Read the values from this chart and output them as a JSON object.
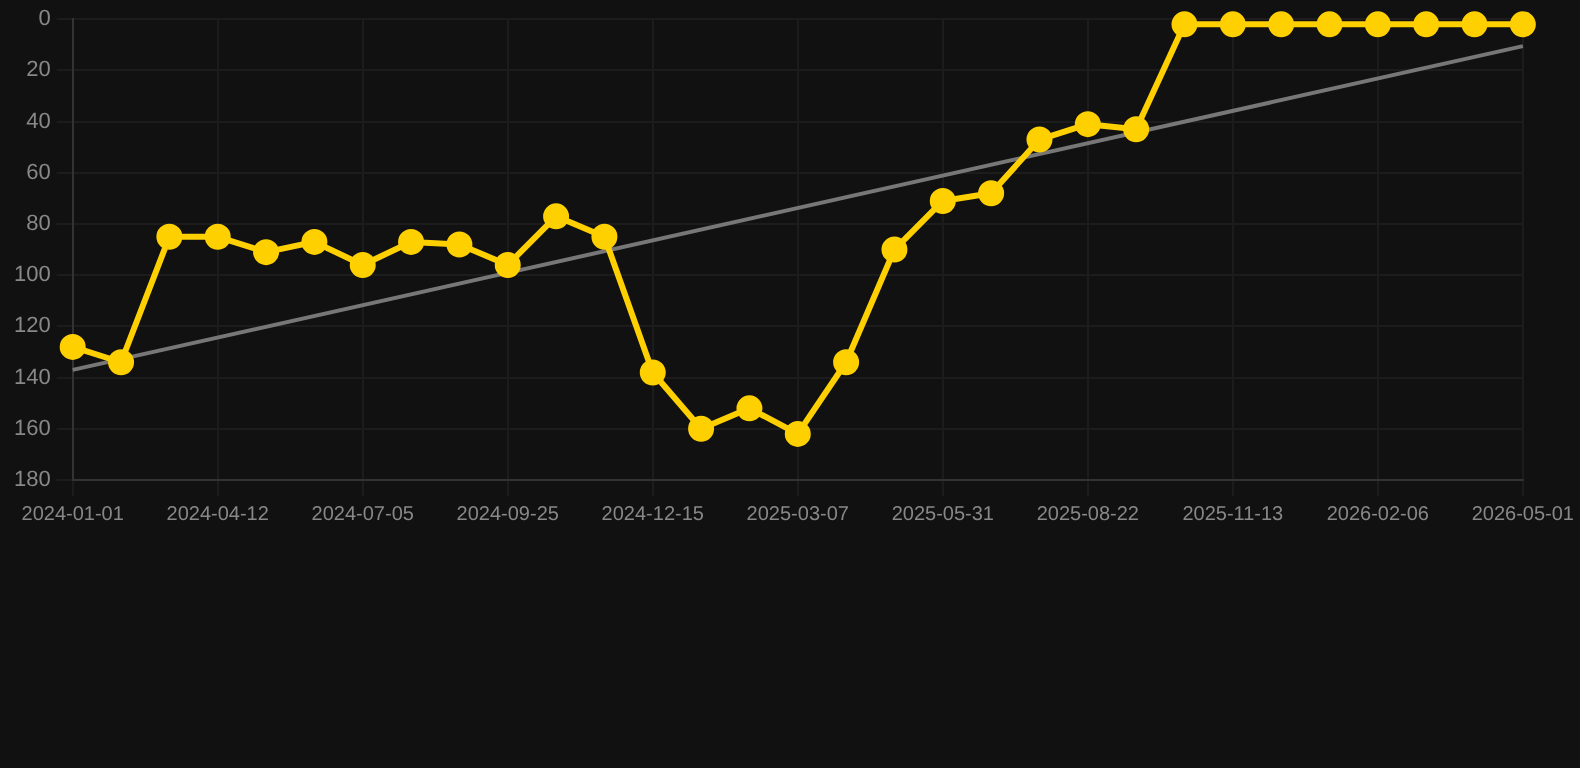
{
  "chart_data": {
    "type": "line",
    "categories": [
      "2024-01-01",
      null,
      null,
      "2024-04-12",
      null,
      null,
      "2024-07-05",
      null,
      null,
      "2024-09-25",
      null,
      null,
      "2024-12-15",
      null,
      null,
      "2025-03-07",
      null,
      null,
      "2025-05-31",
      null,
      null,
      "2025-08-22",
      null,
      null,
      "2025-11-13",
      null,
      null,
      "2026-02-06",
      null,
      null,
      "2026-05-01"
    ],
    "series": [
      {
        "color": "#ffd000",
        "marker": "circle",
        "values": [
          128,
          134,
          85,
          85,
          91,
          87,
          96,
          87,
          88,
          96,
          77,
          85,
          138,
          160,
          152,
          162,
          134,
          90,
          71,
          68,
          47,
          41,
          43,
          2,
          2,
          2,
          2,
          2,
          2,
          2,
          2
        ]
      },
      {
        "type": "line",
        "color": "#777777",
        "marker": "none",
        "values": [
          137,
          null,
          null,
          null,
          null,
          null,
          null,
          null,
          null,
          null,
          null,
          null,
          null,
          null,
          null,
          null,
          null,
          null,
          null,
          null,
          null,
          null,
          null,
          null,
          null,
          null,
          null,
          null,
          null,
          null,
          10.5
        ]
      }
    ],
    "ylim": [
      180,
      0
    ],
    "yticks": [
      0,
      20,
      40,
      60,
      80,
      100,
      120,
      140,
      160,
      180
    ],
    "grid": true,
    "legend": false
  }
}
